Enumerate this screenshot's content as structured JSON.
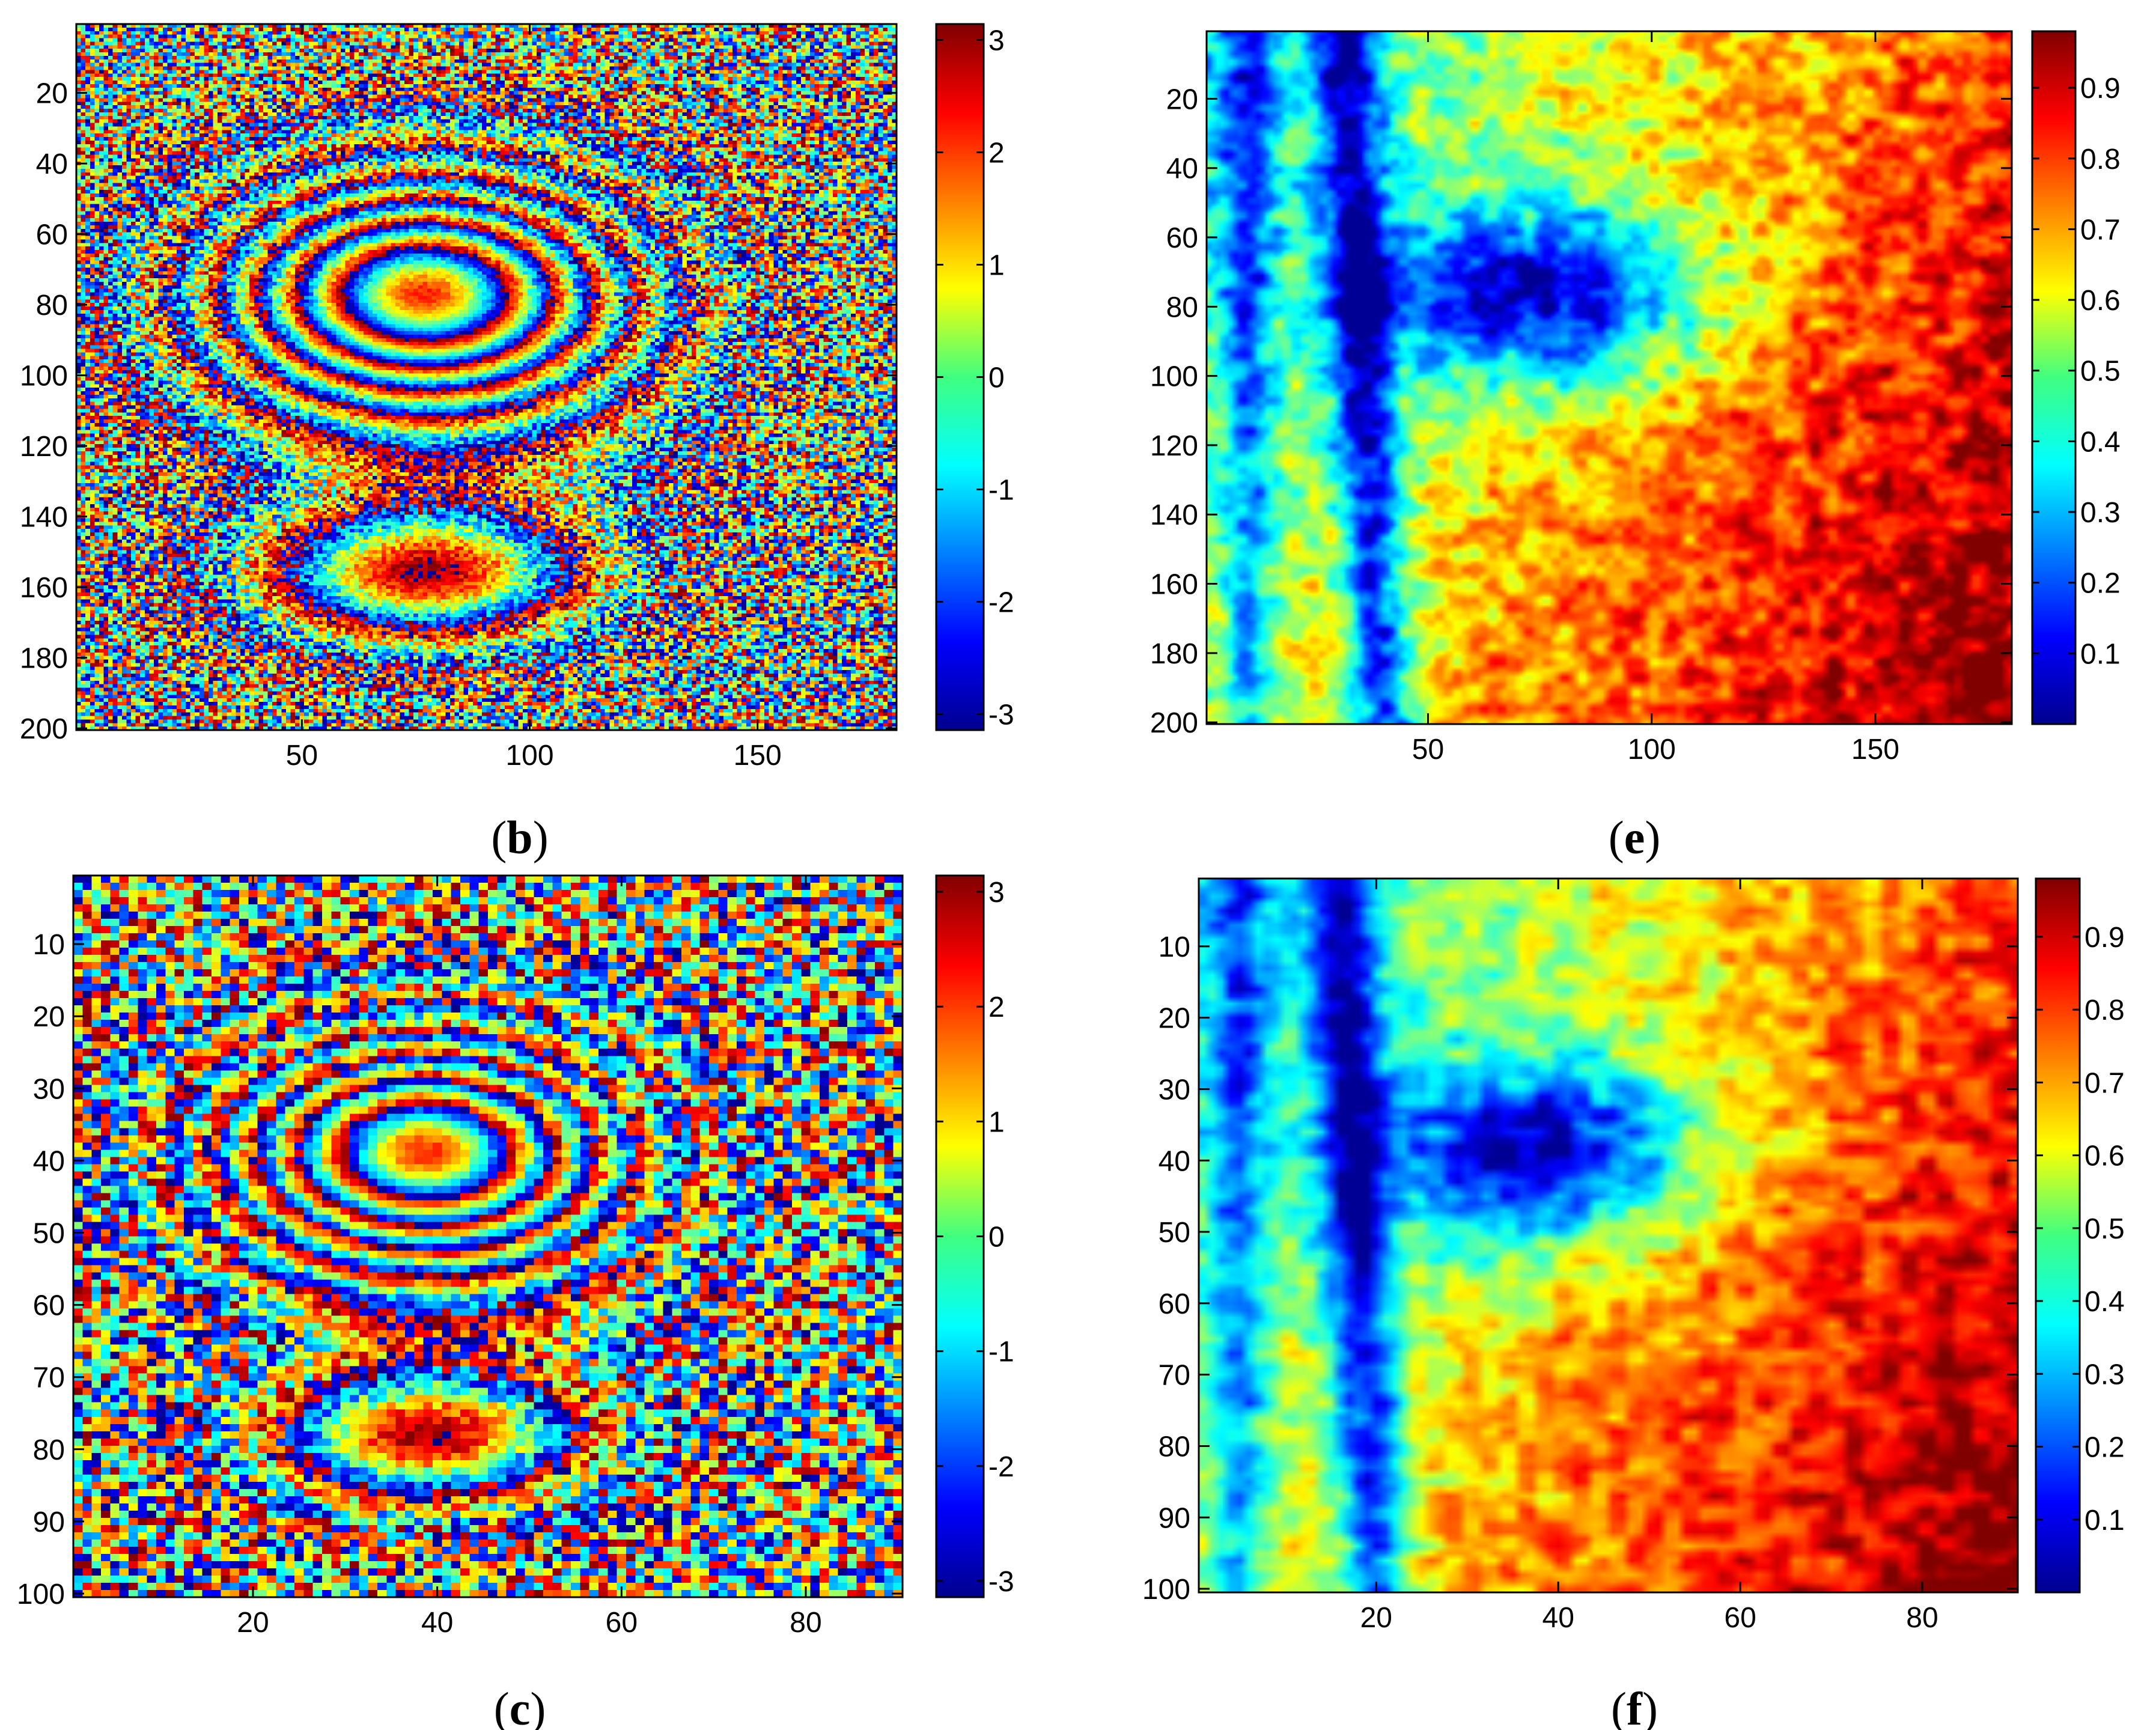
{
  "chart_data": [
    {
      "type": "heatmap",
      "panel_label": "b",
      "x_ticks": [
        50,
        100,
        150
      ],
      "y_ticks": [
        20,
        40,
        60,
        80,
        100,
        120,
        140,
        160,
        180,
        200
      ],
      "xlim": [
        0.5,
        180.5
      ],
      "ylim": [
        200.5,
        0.5
      ],
      "grid_size": [
        180,
        200
      ],
      "y_reversed": true,
      "colormap": "jet",
      "colorbar_range": [
        -3.14159,
        3.14159
      ],
      "colorbar_ticks": [
        3,
        2,
        1,
        0,
        -1,
        -2,
        -3
      ],
      "pattern": "wrapped interferometric phase: concentric elliptical fringes centred near (72, 80), a second lobe near (78, 155), noisy background"
    },
    {
      "type": "heatmap",
      "panel_label": "e",
      "x_ticks": [
        50,
        100,
        150
      ],
      "y_ticks": [
        20,
        40,
        60,
        80,
        100,
        120,
        140,
        160,
        180,
        200
      ],
      "xlim": [
        0.5,
        180.5
      ],
      "ylim": [
        200.5,
        0.5
      ],
      "grid_size": [
        180,
        200
      ],
      "y_reversed": true,
      "colormap": "jet",
      "colorbar_range": [
        0,
        0.98
      ],
      "colorbar_ticks": [
        0.9,
        0.8,
        0.7,
        0.6,
        0.5,
        0.4,
        0.3,
        0.2,
        0.1
      ],
      "pattern": "coherence map: low values in the fringe ellipse and along a diagonal band near x 30-45, high values to the right and bottom"
    },
    {
      "type": "heatmap",
      "panel_label": "c",
      "x_ticks": [
        20,
        40,
        60,
        80
      ],
      "y_ticks": [
        10,
        20,
        30,
        40,
        50,
        60,
        70,
        80,
        90,
        100
      ],
      "xlim": [
        0.5,
        90.5
      ],
      "ylim": [
        100.5,
        0.5
      ],
      "grid_size": [
        90,
        100
      ],
      "y_reversed": true,
      "colormap": "jet",
      "colorbar_range": [
        -3.14159,
        3.14159
      ],
      "colorbar_ticks": [
        3,
        2,
        1,
        0,
        -1,
        -2,
        -3
      ],
      "pattern": "wrapped interferometric phase (half resolution): concentric fringes centred near (40, 38), lower lobe near (40, 80)"
    },
    {
      "type": "heatmap",
      "panel_label": "f",
      "x_ticks": [
        20,
        40,
        60,
        80
      ],
      "y_ticks": [
        10,
        20,
        30,
        40,
        50,
        60,
        70,
        80,
        90,
        100
      ],
      "xlim": [
        0.5,
        90.5
      ],
      "ylim": [
        100.5,
        0.5
      ],
      "grid_size": [
        90,
        100
      ],
      "y_reversed": true,
      "colormap": "jet",
      "colorbar_range": [
        0,
        0.98
      ],
      "colorbar_ticks": [
        0.9,
        0.8,
        0.7,
        0.6,
        0.5,
        0.4,
        0.3,
        0.2,
        0.1
      ],
      "pattern": "coherence map (half resolution): dark blue ellipse centred near (45, 38), blue band along x 15-20, high values at right"
    }
  ]
}
